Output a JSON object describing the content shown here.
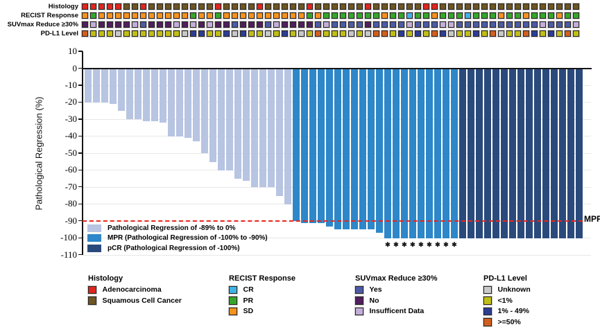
{
  "chart_data": {
    "type": "bar",
    "title": "",
    "ylabel": "Pathological Regression (%)",
    "ylim": [
      -110,
      10
    ],
    "yticks": [
      "10",
      "0",
      "-10",
      "-20",
      "-30",
      "-40",
      "-50",
      "-60",
      "-70",
      "-80",
      "-90",
      "-100",
      "-110"
    ],
    "grid": "horizontal, light gray, every 10%",
    "values": [
      -20,
      -20,
      -20,
      -21,
      -25,
      -30,
      -30,
      -31,
      -31,
      -32,
      -40,
      -40,
      -41,
      -43,
      -50,
      -55,
      -60,
      -60,
      -65,
      -66,
      -70,
      -70,
      -70,
      -75,
      -80,
      -90,
      -91,
      -91,
      -91,
      -93,
      -95,
      -95,
      -95,
      -95,
      -95,
      -97,
      -100,
      -100,
      -100,
      -100,
      -100,
      -100,
      -100,
      -100,
      -100,
      -100,
      -100,
      -100,
      -100,
      -100,
      -100,
      -100,
      -100,
      -100,
      -100,
      -100,
      -100,
      -100,
      -100,
      -100
    ],
    "group_counts": {
      "light": 25,
      "mpr": 20,
      "pcr": 15
    },
    "asterisk_bars_1based": [
      37,
      38,
      39,
      40,
      41,
      42,
      43,
      44,
      45
    ],
    "marker_char": "✱",
    "threshold": {
      "value": -90,
      "label": "MPR",
      "color": "#e8251d"
    },
    "legend": [
      {
        "key": "light",
        "label": "Pathological Regression of -89% to 0%",
        "color": "#b7c4e2"
      },
      {
        "key": "mpr",
        "label": "MPR (Pathological Regression of -100% to -90%)",
        "color": "#2d87c8"
      },
      {
        "key": "pcr",
        "label": "pCR (Pathological Regression of -100%)",
        "color": "#2a4a7c"
      }
    ]
  },
  "tracks": {
    "palette": {
      "adeno": "#e2251f",
      "squam": "#6d5624",
      "sd": "#f6921e",
      "pr": "#35a62c",
      "cr": "#3fb4e6",
      "yes": "#4c5ba6",
      "no": "#4f1f5e",
      "insuf": "#c3aeda",
      "unk": "#c9c9c9",
      "lt1": "#c0bf16",
      "m149": "#2c3d94",
      "ge50": "#d05f20"
    },
    "rows": [
      {
        "label": "Histology",
        "codes": [
          "adeno",
          "adeno",
          "adeno",
          "adeno",
          "adeno",
          "squam",
          "squam",
          "adeno",
          "squam",
          "squam",
          "squam",
          "squam",
          "squam",
          "squam",
          "squam",
          "squam",
          "adeno",
          "squam",
          "squam",
          "squam",
          "squam",
          "adeno",
          "squam",
          "squam",
          "squam",
          "squam",
          "squam",
          "adeno",
          "squam",
          "squam",
          "squam",
          "squam",
          "squam",
          "squam",
          "adeno",
          "squam",
          "squam",
          "squam",
          "squam",
          "squam",
          "squam",
          "adeno",
          "adeno",
          "squam",
          "squam",
          "squam",
          "squam",
          "squam",
          "squam",
          "squam",
          "squam",
          "squam",
          "squam",
          "squam",
          "squam",
          "squam",
          "squam",
          "squam",
          "squam",
          "squam"
        ]
      },
      {
        "label": "RECIST Response",
        "codes": [
          "sd",
          "pr",
          "sd",
          "sd",
          "sd",
          "sd",
          "sd",
          "sd",
          "sd",
          "sd",
          "sd",
          "sd",
          "sd",
          "pr",
          "sd",
          "sd",
          "pr",
          "sd",
          "sd",
          "sd",
          "sd",
          "sd",
          "sd",
          "sd",
          "sd",
          "sd",
          "sd",
          "pr",
          "sd",
          "pr",
          "pr",
          "pr",
          "pr",
          "pr",
          "pr",
          "pr",
          "sd",
          "pr",
          "pr",
          "cr",
          "pr",
          "pr",
          "sd",
          "pr",
          "pr",
          "pr",
          "cr",
          "pr",
          "pr",
          "pr",
          "sd",
          "pr",
          "pr",
          "sd",
          "pr",
          "pr",
          "pr",
          "sd",
          "pr",
          "pr"
        ]
      },
      {
        "label": "SUVmax Reduce ≥30%",
        "codes": [
          "no",
          "insuf",
          "no",
          "no",
          "no",
          "no",
          "insuf",
          "yes",
          "no",
          "no",
          "no",
          "insuf",
          "no",
          "insuf",
          "no",
          "insuf",
          "no",
          "no",
          "yes",
          "no",
          "no",
          "no",
          "yes",
          "insuf",
          "no",
          "no",
          "no",
          "no",
          "yes",
          "insuf",
          "yes",
          "yes",
          "yes",
          "yes",
          "no",
          "yes",
          "yes",
          "yes",
          "yes",
          "insuf",
          "yes",
          "yes",
          "yes",
          "insuf",
          "insuf",
          "yes",
          "yes",
          "yes",
          "yes",
          "yes",
          "yes",
          "yes",
          "yes",
          "yes",
          "yes",
          "insuf",
          "yes",
          "yes",
          "yes",
          "insuf"
        ]
      },
      {
        "label": "PD-L1 Level",
        "codes": [
          "ge50",
          "lt1",
          "lt1",
          "lt1",
          "unk",
          "lt1",
          "lt1",
          "lt1",
          "lt1",
          "lt1",
          "lt1",
          "lt1",
          "unk",
          "m149",
          "m149",
          "lt1",
          "lt1",
          "m149",
          "unk",
          "m149",
          "lt1",
          "lt1",
          "unk",
          "lt1",
          "m149",
          "lt1",
          "unk",
          "lt1",
          "ge50",
          "lt1",
          "lt1",
          "lt1",
          "unk",
          "lt1",
          "unk",
          "ge50",
          "ge50",
          "lt1",
          "m149",
          "lt1",
          "m149",
          "lt1",
          "ge50",
          "m149",
          "unk",
          "lt1",
          "lt1",
          "m149",
          "lt1",
          "ge50",
          "unk",
          "lt1",
          "lt1",
          "ge50",
          "m149",
          "lt1",
          "m149",
          "lt1",
          "ge50",
          "lt1"
        ]
      }
    ]
  },
  "bottom_legends": [
    {
      "title": "Histology",
      "items": [
        {
          "label": "Adenocarcinoma",
          "color": "#e2251f"
        },
        {
          "label": "Squamous Cell Cancer",
          "color": "#6d5624"
        }
      ]
    },
    {
      "title": "RECIST Response",
      "items": [
        {
          "label": "CR",
          "color": "#3fb4e6"
        },
        {
          "label": "PR",
          "color": "#35a62c"
        },
        {
          "label": "SD",
          "color": "#f6921e"
        }
      ]
    },
    {
      "title": "SUVmax Reduce ≥30%",
      "items": [
        {
          "label": "Yes",
          "color": "#4c5ba6"
        },
        {
          "label": "No",
          "color": "#4f1f5e"
        },
        {
          "label": "Insufficent Data",
          "color": "#c3aeda"
        }
      ]
    },
    {
      "title": "PD-L1 Level",
      "items": [
        {
          "label": "Unknown",
          "color": "#c9c9c9"
        },
        {
          "label": "<1%",
          "color": "#c0bf16"
        },
        {
          "label": "1% - 49%",
          "color": "#2c3d94"
        },
        {
          "label": ">=50%",
          "color": "#d05f20"
        }
      ]
    }
  ]
}
